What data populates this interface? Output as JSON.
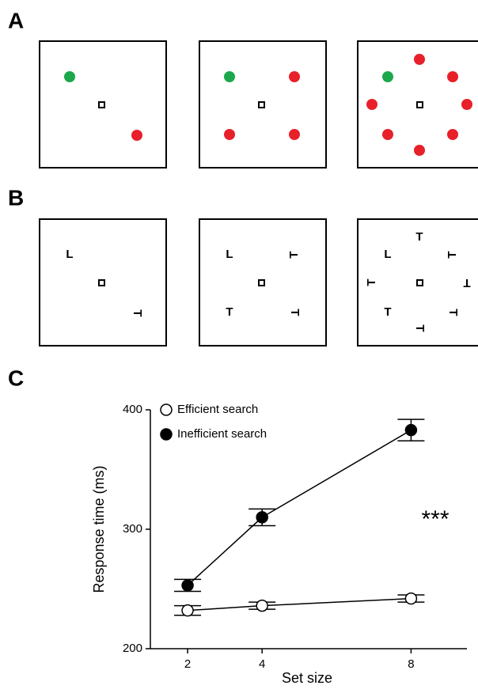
{
  "panel_labels": [
    "A",
    "B",
    "C"
  ],
  "letter_stimuli": [
    "L",
    "T"
  ],
  "chart_data": {
    "type": "line",
    "x_label": "Set size",
    "y_label": "Response time (ms)",
    "x": [
      2,
      4,
      8
    ],
    "xlim": [
      1,
      9.5
    ],
    "xticks": [
      2,
      4,
      8
    ],
    "ylim": [
      200,
      400
    ],
    "yticks": [
      200,
      300,
      400
    ],
    "series": [
      {
        "name": "Efficient search",
        "color": "#ffffff",
        "values": [
          232,
          236,
          242
        ],
        "errors": [
          4,
          3,
          3
        ]
      },
      {
        "name": "Inefficient search",
        "color": "#000000",
        "values": [
          253,
          310,
          383
        ],
        "errors": [
          5,
          7,
          9
        ]
      }
    ],
    "legend": "upper left",
    "annotation": "***"
  }
}
